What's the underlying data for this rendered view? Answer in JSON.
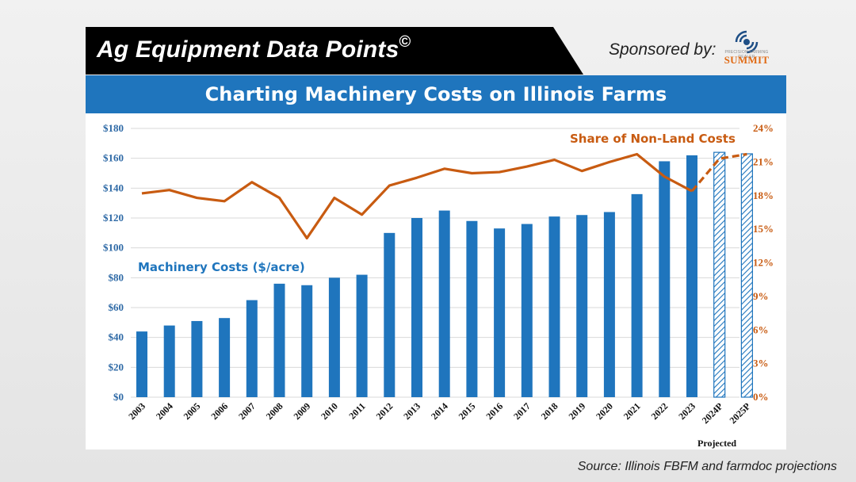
{
  "banner": {
    "title": "Ag Equipment Data Points",
    "copyright": "©",
    "sponsor_label": "Sponsored by:",
    "sponsor_logo_text": "SUMMIT",
    "sponsor_logo_subtext": "PRECISION FARMING DEALER"
  },
  "header": {
    "title": "Charting Machinery Costs on Illinois Farms"
  },
  "source": "Source: Illinois FBFM and farmdoc projections",
  "colors": {
    "bar": "#1f75bd",
    "line": "#c85b11",
    "header": "#1f75bd"
  },
  "chart_data": {
    "type": "bar+line",
    "categories": [
      "2003",
      "2004",
      "2005",
      "2006",
      "2007",
      "2008",
      "2009",
      "2010",
      "2011",
      "2012",
      "2013",
      "2014",
      "2015",
      "2016",
      "2017",
      "2018",
      "2019",
      "2020",
      "2021",
      "2022",
      "2023",
      "2024P",
      "2025P"
    ],
    "projected_categories": [
      "2024P",
      "2025P"
    ],
    "projected_label": "Projected",
    "series": [
      {
        "name": "Machinery Costs ($/acre)",
        "type": "bar",
        "axis": "left",
        "values": [
          44,
          48,
          51,
          53,
          65,
          76,
          75,
          80,
          82,
          110,
          120,
          125,
          118,
          113,
          116,
          121,
          122,
          124,
          136,
          158,
          162,
          164,
          163
        ]
      },
      {
        "name": "Share of Non-Land Costs",
        "type": "line",
        "axis": "right",
        "unit": "%",
        "values": [
          18.2,
          18.5,
          17.8,
          17.5,
          19.2,
          17.8,
          14.2,
          17.8,
          16.3,
          18.9,
          19.6,
          20.4,
          20.0,
          20.1,
          20.6,
          21.2,
          20.2,
          21.0,
          21.7,
          19.7,
          18.4,
          21.3,
          21.7
        ]
      }
    ],
    "y_left": {
      "ticks": [
        "$0",
        "$20",
        "$40",
        "$60",
        "$80",
        "$100",
        "$120",
        "$140",
        "$160",
        "$180"
      ],
      "range": [
        0,
        180
      ]
    },
    "y_right": {
      "ticks": [
        "0%",
        "3%",
        "6%",
        "9%",
        "12%",
        "15%",
        "18%",
        "21%",
        "24%"
      ],
      "range": [
        0,
        24
      ]
    },
    "grid": true
  }
}
